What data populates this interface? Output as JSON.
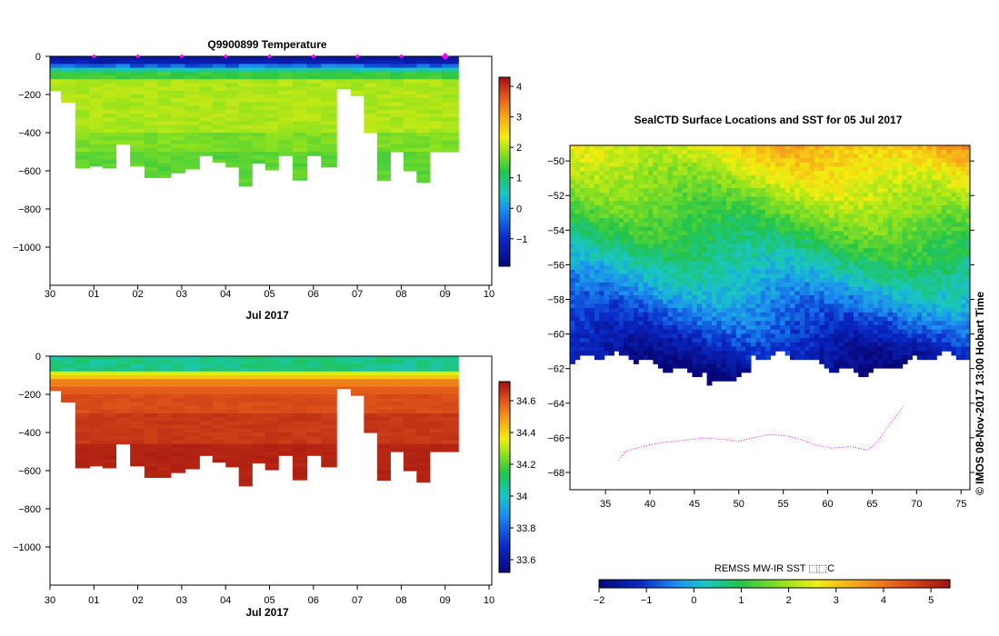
{
  "chart_data": [
    {
      "type": "heatmap",
      "title": "Q9900899  Temperature",
      "variable": "temperature",
      "xlabel": "Jul 2017",
      "x_tick_labels": [
        "30",
        "01",
        "02",
        "03",
        "04",
        "05",
        "06",
        "07",
        "08",
        "09",
        "10"
      ],
      "y_tick_labels": [
        "0",
        "−200",
        "−400",
        "−600",
        "−800",
        "−1000"
      ],
      "ylim": [
        -1200,
        0
      ],
      "colorbar_ticks": [
        "4",
        "3",
        "2",
        "1",
        "0",
        "−1"
      ],
      "colorbar_range": [
        -1.9,
        4.3
      ],
      "colorbar_value_ticks": [
        4,
        3,
        2,
        1,
        0,
        -1
      ],
      "marker_days": [
        1,
        2,
        3,
        4,
        5,
        6,
        7,
        8,
        9
      ],
      "profile_times_days": [
        0.1,
        0.4,
        0.75,
        1.05,
        1.35,
        1.65,
        2.0,
        2.3,
        2.6,
        2.9,
        3.25,
        3.55,
        3.85,
        4.15,
        4.45,
        4.75,
        5.05,
        5.35,
        5.7,
        6.0,
        6.35,
        6.7,
        7.0,
        7.3,
        7.6,
        7.9,
        8.2,
        8.5,
        8.8,
        9.05
      ],
      "profile_max_depth_m": [
        180,
        240,
        585,
        575,
        585,
        460,
        575,
        635,
        635,
        610,
        590,
        520,
        555,
        580,
        680,
        560,
        595,
        520,
        648,
        520,
        580,
        170,
        205,
        400,
        650,
        500,
        600,
        660,
        500,
        500
      ]
    },
    {
      "type": "heatmap",
      "title": "",
      "variable": "salinity",
      "xlabel": "Jul 2017",
      "x_tick_labels": [
        "30",
        "01",
        "02",
        "03",
        "04",
        "05",
        "06",
        "07",
        "08",
        "09",
        "10"
      ],
      "y_tick_labels": [
        "0",
        "−200",
        "−400",
        "−600",
        "−800",
        "−1000"
      ],
      "ylim": [
        -1200,
        0
      ],
      "colorbar_ticks": [
        "34.6",
        "34.4",
        "34.2",
        "34",
        "33.8",
        "33.6"
      ],
      "colorbar_range": [
        33.52,
        34.72
      ],
      "colorbar_value_ticks": [
        34.6,
        34.4,
        34.2,
        34.0,
        33.8,
        33.6
      ]
    },
    {
      "type": "heatmap",
      "title": "SealCTD Surface Locations and SST for 05 Jul 2017",
      "x_tick_labels": [
        "35",
        "40",
        "45",
        "50",
        "55",
        "60",
        "65",
        "70",
        "75"
      ],
      "y_tick_labels": [
        "−50",
        "−52",
        "−54",
        "−56",
        "−58",
        "−60",
        "−62",
        "−64",
        "−66",
        "−68"
      ],
      "xlim": [
        31,
        76
      ],
      "ylim": [
        -69,
        -49.1
      ],
      "colorbar_label": "REMSS MW-IR SST ⬚⬚C",
      "colorbar_ticks": [
        "−2",
        "−1",
        "0",
        "1",
        "2",
        "3",
        "4",
        "5"
      ],
      "colorbar_range": [
        -2,
        5.4
      ],
      "colorbar_value_ticks": [
        -2,
        -1,
        0,
        1,
        2,
        3,
        4,
        5
      ],
      "credit": "© IMOS 08-Nov-2017 13:00 Hobart Time",
      "seal_track_lon": [
        36.5,
        37.2,
        38.5,
        40.0,
        41.0,
        43.0,
        46.0,
        48.5,
        50.0,
        51.5,
        53.5,
        55.5,
        57.0,
        58.5,
        60.5,
        62.5,
        64.5,
        65.5,
        67.0,
        68.5
      ],
      "seal_track_lat": [
        -67.3,
        -66.8,
        -66.6,
        -66.4,
        -66.3,
        -66.2,
        -66.0,
        -66.1,
        -66.2,
        -66.0,
        -65.8,
        -65.9,
        -66.1,
        -66.4,
        -66.6,
        -66.5,
        -66.7,
        -66.3,
        -65.2,
        -64.2
      ]
    }
  ]
}
